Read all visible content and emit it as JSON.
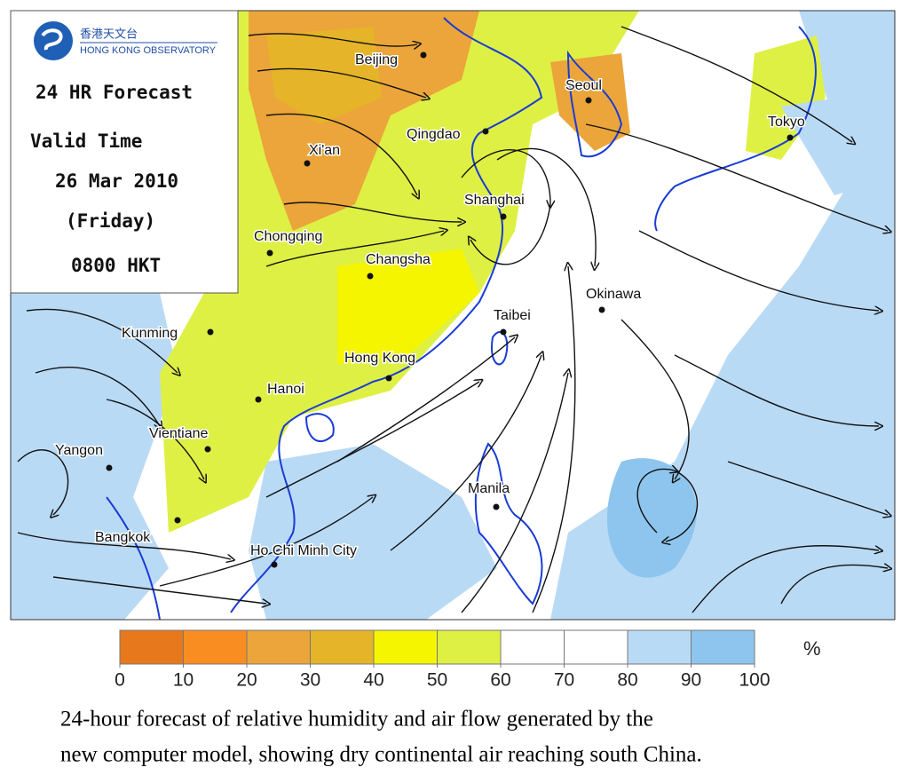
{
  "logo": {
    "chinese": "香港天文台",
    "english": "HONG KONG OBSERVATORY"
  },
  "forecast": {
    "title": "24 HR Forecast",
    "valid_label": "Valid Time",
    "date": "26 Mar 2010",
    "weekday": "(Friday)",
    "time": "0800 HKT"
  },
  "cities": [
    "Beijing",
    "Seoul",
    "Tokyo",
    "Qingdao",
    "Xi'an",
    "Shanghai",
    "Chongqing",
    "Changsha",
    "Okinawa",
    "Taibei",
    "Kunming",
    "Hong Kong",
    "Hanoi",
    "Vientiane",
    "Yangon",
    "Manila",
    "Bangkok",
    "Ho Chi Minh City"
  ],
  "colorbar": {
    "ticks": [
      0,
      10,
      20,
      30,
      40,
      50,
      60,
      70,
      80,
      90,
      100
    ],
    "colors": [
      "#e8781c",
      "#f98d22",
      "#eba53a",
      "#e6b428",
      "#f5f500",
      "#def044",
      "#ffffff",
      "#ffffff",
      "#b9daf5",
      "#8ec5ee"
    ],
    "unit": "%"
  },
  "caption": [
    "24-hour forecast of relative humidity and air flow generated by the",
    "new computer model, showing dry continental air reaching south China."
  ]
}
